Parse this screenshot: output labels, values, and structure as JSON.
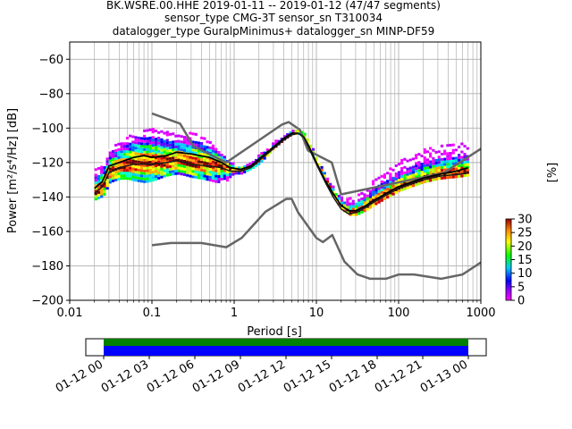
{
  "chart_data": {
    "type": "heatmap",
    "title_lines": [
      "BK.WSRE.00.HHE   2019-01-11 -- 2019-01-12  (47/47 segments)",
      "sensor_type CMG-3T sensor_sn T310034",
      "datalogger_type GuralpMinimus+ datalogger_sn MINP-DF59"
    ],
    "xlabel": "Period [s]",
    "ylabel": "Power [m²/s⁴/Hz] [dB]",
    "xscale": "log",
    "xlim": [
      0.01,
      1000
    ],
    "ylim": [
      -200,
      -50
    ],
    "xticks": [
      {
        "value": 0.01,
        "label": "0.01"
      },
      {
        "value": 0.1,
        "label": "0.1"
      },
      {
        "value": 1,
        "label": "1"
      },
      {
        "value": 10,
        "label": "10"
      },
      {
        "value": 100,
        "label": "100"
      },
      {
        "value": 1000,
        "label": "1000"
      }
    ],
    "yticks": [
      -60,
      -80,
      -100,
      -120,
      -140,
      -160,
      -180,
      -200
    ],
    "grid": true,
    "colorbar": {
      "label": "[%]",
      "range": [
        0,
        30
      ],
      "ticks": [
        0,
        5,
        10,
        15,
        20,
        25,
        30
      ]
    },
    "noise_model_high": {
      "x": [
        0.1,
        0.22,
        0.32,
        0.8,
        3.8,
        4.6,
        6.3,
        7.9,
        15.4,
        20,
        354.8,
        1000
      ],
      "y": [
        -91.5,
        -97.4,
        -110.5,
        -120,
        -98,
        -96.5,
        -101,
        -113,
        -120,
        -138.5,
        -126,
        -112
      ]
    },
    "noise_model_low": {
      "x": [
        0.1,
        0.17,
        0.4,
        0.8,
        1.24,
        2.4,
        4.3,
        5,
        6,
        10,
        12,
        15.6,
        21.9,
        31.6,
        45,
        70,
        101,
        154,
        328,
        600,
        1000
      ],
      "y": [
        -168,
        -166.7,
        -166.7,
        -169.2,
        -163.7,
        -148.6,
        -141.1,
        -141.1,
        -149,
        -163.8,
        -166.2,
        -162.1,
        -177.5,
        -185,
        -187.5,
        -187.5,
        -185,
        -185,
        -187.5,
        -185,
        -178
      ]
    },
    "mean_curve": {
      "x": [
        0.02,
        0.025,
        0.03,
        0.04,
        0.06,
        0.08,
        0.1,
        0.15,
        0.2,
        0.3,
        0.5,
        0.7,
        0.9,
        1.2,
        1.6,
        2,
        3,
        4,
        5,
        6,
        7,
        8,
        10,
        13,
        16,
        20,
        25,
        30,
        40,
        50,
        70,
        100,
        150,
        200,
        300,
        500,
        700
      ],
      "y": [
        -135,
        -131,
        -122,
        -120,
        -117,
        -116,
        -117,
        -116,
        -114,
        -115,
        -117,
        -120,
        -123,
        -124,
        -122,
        -118,
        -111,
        -106,
        -103,
        -103,
        -105,
        -110,
        -120,
        -131,
        -138,
        -145,
        -148,
        -148,
        -145,
        -142,
        -138,
        -134,
        -131,
        -129,
        -127,
        -125,
        -123
      ]
    },
    "mode_curve": {
      "x": [
        0.02,
        0.025,
        0.03,
        0.04,
        0.06,
        0.08,
        0.1,
        0.15,
        0.2,
        0.3,
        0.5,
        0.7,
        0.9,
        1.2,
        1.6,
        2,
        3,
        4,
        5,
        6,
        7,
        8,
        10,
        13,
        16,
        20,
        25,
        30,
        40,
        50,
        70,
        100,
        150,
        200,
        300,
        500,
        700
      ],
      "y": [
        -138,
        -134,
        -126,
        -123,
        -121,
        -121,
        -121,
        -120,
        -119,
        -121,
        -122,
        -123,
        -125,
        -125,
        -123,
        -119,
        -112,
        -107,
        -104,
        -103,
        -105,
        -111,
        -121,
        -132,
        -140,
        -147,
        -150,
        -149,
        -146,
        -143,
        -139,
        -135,
        -132,
        -130,
        -128,
        -127,
        -126
      ]
    },
    "density": {
      "x": [
        0.02,
        0.025,
        0.03,
        0.04,
        0.05,
        0.06,
        0.08,
        0.1,
        0.13,
        0.15,
        0.2,
        0.25,
        0.3,
        0.4,
        0.5,
        0.6,
        0.7,
        0.8,
        0.9,
        1.0,
        1.2,
        1.6,
        2,
        2.5,
        3,
        4,
        5,
        6,
        7,
        8,
        10,
        13,
        16,
        20,
        25,
        30,
        40,
        50,
        70,
        100,
        150,
        200,
        300,
        500,
        700
      ],
      "low": [
        -142,
        -140,
        -132,
        -130,
        -130,
        -131,
        -132,
        -131,
        -129,
        -128,
        -127,
        -128,
        -129,
        -130,
        -131,
        -132,
        -132,
        -131,
        -128,
        -127,
        -127,
        -124,
        -121,
        -116,
        -112,
        -107,
        -104,
        -104,
        -106,
        -112,
        -122,
        -133,
        -141,
        -148,
        -151,
        -151,
        -148,
        -145,
        -141,
        -137,
        -134,
        -132,
        -130,
        -129,
        -128
      ],
      "high": [
        -124,
        -120,
        -112,
        -108,
        -105,
        -103,
        -102,
        -101,
        -101,
        -103,
        -105,
        -104,
        -103,
        -106,
        -109,
        -113,
        -116,
        -119,
        -121,
        -122,
        -123,
        -120,
        -116,
        -112,
        -108,
        -104,
        -102,
        -102,
        -104,
        -109,
        -118,
        -128,
        -135,
        -140,
        -141,
        -140,
        -135,
        -130,
        -125,
        -120,
        -116,
        -113,
        -110,
        -109,
        -109
      ],
      "peak_percent": 30
    }
  },
  "time_axis": {
    "ticks": [
      "01-12 00",
      "01-12 03",
      "01-12 06",
      "01-12 09",
      "01-12 12",
      "01-12 15",
      "01-12 18",
      "01-12 21",
      "01-13 00"
    ],
    "bar_colors": [
      "#008000",
      "#0000ff"
    ],
    "coverage_hours": [
      0,
      24
    ]
  }
}
